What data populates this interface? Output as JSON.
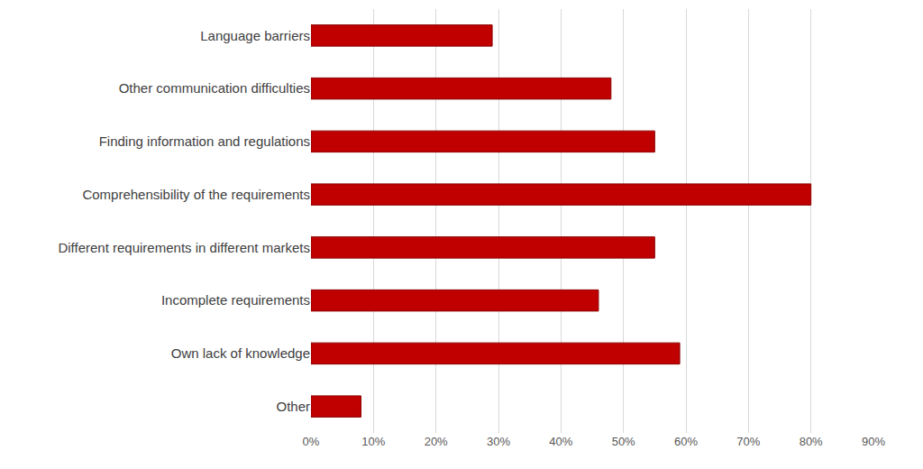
{
  "chart_data": {
    "type": "bar",
    "orientation": "horizontal",
    "categories": [
      "Language barriers",
      "Other communication difficulties",
      "Finding information and regulations",
      "Comprehensibility of the requirements",
      "Different requirements in different markets",
      "Incomplete requirements",
      "Own lack of knowledge",
      "Other"
    ],
    "values": [
      29,
      48,
      55,
      80,
      55,
      46,
      59,
      8
    ],
    "color": "#c00000",
    "xlim": [
      0,
      90
    ],
    "xticks": [
      {
        "value": 0,
        "label": "0%"
      },
      {
        "value": 10,
        "label": "10%"
      },
      {
        "value": 20,
        "label": "20%"
      },
      {
        "value": 30,
        "label": "30%"
      },
      {
        "value": 40,
        "label": "40%"
      },
      {
        "value": 50,
        "label": "50%"
      },
      {
        "value": 60,
        "label": "60%"
      },
      {
        "value": 70,
        "label": "70%"
      },
      {
        "value": 80,
        "label": "80%"
      },
      {
        "value": 90,
        "label": "90%"
      }
    ],
    "grid": true
  }
}
